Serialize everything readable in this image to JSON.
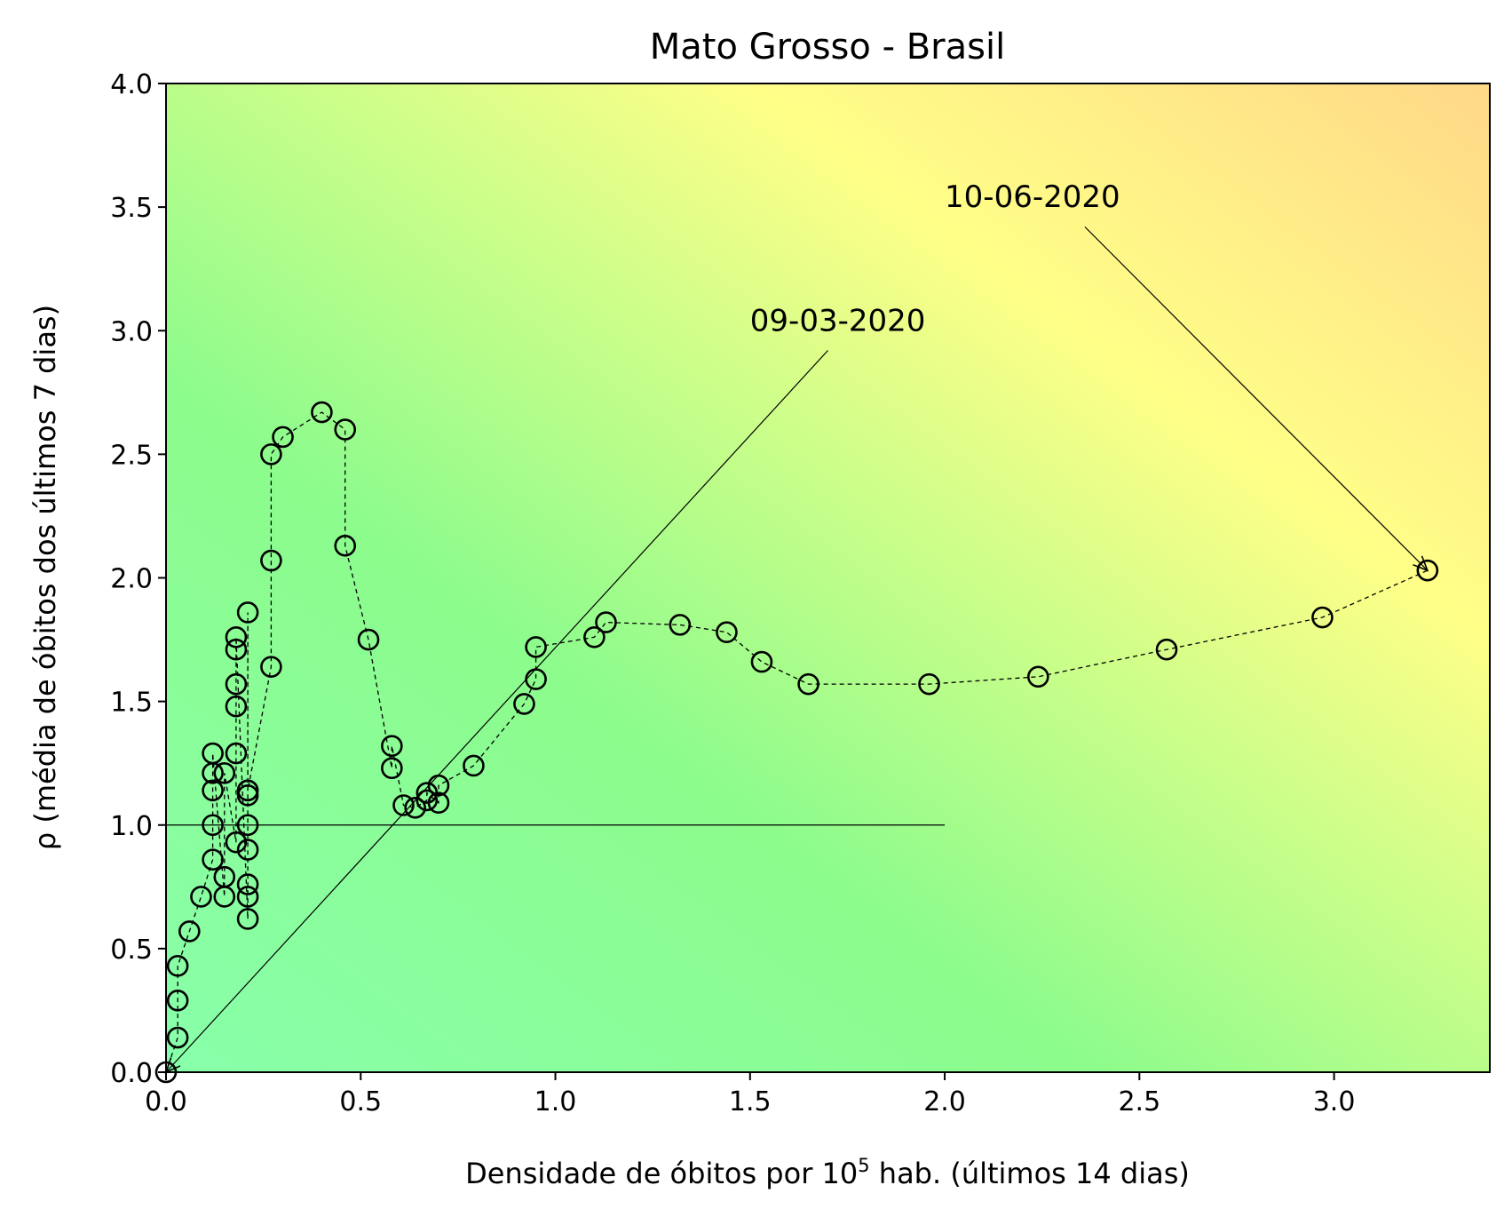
{
  "chart_data": {
    "type": "scatter",
    "title": "Mato Grosso - Brasil",
    "xlabel_prefix": "Densidade de óbitos por 10",
    "xlabel_sup": "5",
    "xlabel_suffix": " hab. (últimos 14 dias)",
    "ylabel": "ρ (média de óbitos dos últimos 7 dias)",
    "xlim": [
      0.0,
      3.4
    ],
    "ylim": [
      0.0,
      4.0
    ],
    "xticks": [
      0.0,
      0.5,
      1.0,
      1.5,
      2.0,
      2.5,
      3.0
    ],
    "xtick_labels": [
      "0.0",
      "0.5",
      "1.0",
      "1.5",
      "2.0",
      "2.5",
      "3.0"
    ],
    "yticks": [
      0.0,
      0.5,
      1.0,
      1.5,
      2.0,
      2.5,
      3.0,
      3.5,
      4.0
    ],
    "ytick_labels": [
      "0.0",
      "0.5",
      "1.0",
      "1.5",
      "2.0",
      "2.5",
      "3.0",
      "3.5",
      "4.0"
    ],
    "grid": false,
    "background_colors": {
      "low": "#88ffaa",
      "mid": "#8cfc8c",
      "high": "#ffff88",
      "corner": "#ffd888"
    },
    "reference_line": {
      "y": 1.0,
      "x_start": 0.0,
      "x_end": 2.0
    },
    "series": [
      {
        "x": [
          0.0,
          0.03,
          0.03,
          0.03,
          0.06,
          0.09,
          0.12,
          0.12,
          0.12,
          0.12,
          0.12,
          0.15,
          0.15,
          0.15,
          0.18,
          0.18,
          0.18,
          0.18,
          0.18,
          0.18,
          0.21,
          0.21,
          0.21,
          0.21,
          0.21,
          0.21,
          0.21,
          0.21,
          0.21,
          0.27,
          0.27,
          0.27,
          0.3,
          0.4,
          0.46,
          0.46,
          0.52,
          0.58,
          0.58,
          0.61,
          0.64,
          0.67,
          0.67,
          0.7,
          0.7,
          0.79,
          0.92,
          0.95,
          0.95,
          1.1,
          1.13,
          1.32,
          1.44,
          1.53,
          1.65,
          1.96,
          2.24,
          2.57,
          2.97,
          3.24
        ],
        "y": [
          0.0,
          0.14,
          0.29,
          0.43,
          0.57,
          0.71,
          0.86,
          1.0,
          1.14,
          1.21,
          1.29,
          0.71,
          0.79,
          1.21,
          0.93,
          1.29,
          1.48,
          1.57,
          1.71,
          1.76,
          0.62,
          0.71,
          0.76,
          0.9,
          1.0,
          1.12,
          1.14,
          1.86,
          1.14,
          1.64,
          2.07,
          2.5,
          2.57,
          2.67,
          2.6,
          2.13,
          1.75,
          1.23,
          1.32,
          1.08,
          1.07,
          1.1,
          1.13,
          1.09,
          1.16,
          1.24,
          1.49,
          1.59,
          1.72,
          1.76,
          1.82,
          1.81,
          1.78,
          1.66,
          1.57,
          1.57,
          1.6,
          1.71,
          1.84,
          2.03
        ]
      }
    ],
    "annotations": [
      {
        "text": "09-03-2020",
        "text_x": 1.5,
        "text_y": 3.0,
        "line_from": [
          1.7,
          2.92
        ],
        "point": [
          0.0,
          0.0
        ]
      },
      {
        "text": "10-06-2020",
        "text_x": 2.0,
        "text_y": 3.5,
        "line_from": [
          2.36,
          3.42
        ],
        "point": [
          3.24,
          2.03
        ]
      }
    ]
  }
}
